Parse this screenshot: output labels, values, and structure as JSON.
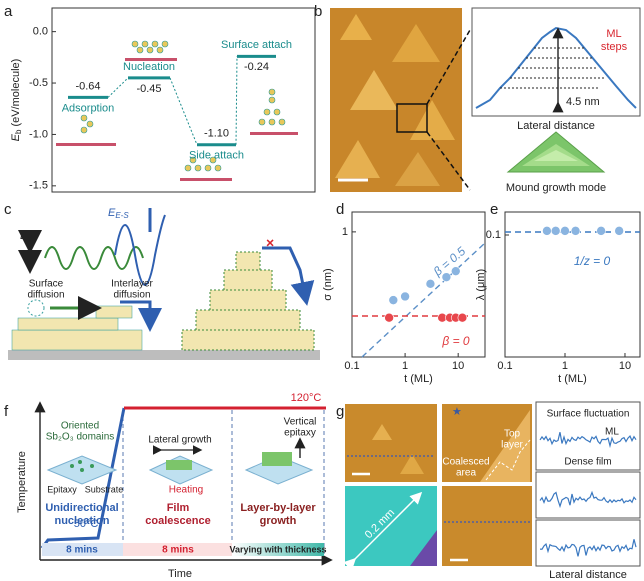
{
  "panel_labels": [
    "a",
    "b",
    "c",
    "d",
    "e",
    "f",
    "g"
  ],
  "chart_data": [
    {
      "type": "level",
      "ylabel": {
        "symbol": "E",
        "subscript": "b",
        "unit": "(eV/molecule)"
      },
      "categories": [
        "Adsorption",
        "Nucleation",
        "Side attach",
        "Surface attach"
      ],
      "values": [
        -0.64,
        -0.45,
        -1.1,
        -0.24
      ],
      "value_labels": [
        "-0.64",
        "-0.45",
        "-1.10",
        "-0.24"
      ],
      "color": "#1a8c8c",
      "ylim": [
        -1.56,
        0.23
      ],
      "yticks": [
        -1.5,
        {
          "value": -1,
          "label": "-1.0"
        },
        -0.5,
        {
          "value": 0,
          "label": "0.0"
        }
      ]
    },
    {
      "type": "scatter",
      "xlabel": "t (ML)",
      "ylabel": "σ (nm)",
      "xscale": "log",
      "yscale": "log",
      "xlim": [
        0.1,
        32
      ],
      "ylim": [
        0.11,
        1.42
      ],
      "xticks": [
        0.1,
        1,
        10
      ],
      "yticks": [
        1
      ],
      "series": [
        {
          "color": "#8ab4e0",
          "x": [
            0.5,
            0.6,
            1,
            3,
            6,
            9
          ],
          "values": [
            0.22,
            0.3,
            0.32,
            0.4,
            0.45,
            0.5
          ]
        },
        {
          "color": "#e8474c",
          "x": [
            0.5,
            5,
            7,
            9,
            12
          ],
          "values": [
            0.22,
            0.22,
            0.22,
            0.22,
            0.22
          ]
        }
      ],
      "annotations": [
        {
          "text": "β = 0.5",
          "color": "#5b8fc7"
        },
        {
          "text": "β = 0",
          "color": "#e03a3e"
        }
      ]
    },
    {
      "type": "scatter",
      "xlabel": "t (ML)",
      "ylabel": "λ (μm)",
      "xscale": "log",
      "yscale": "log",
      "xlim": [
        0.1,
        17.8
      ],
      "ylim": [
        0.006,
        0.17
      ],
      "xticks": [
        0.1,
        1,
        10
      ],
      "yticks": [
        0.1
      ],
      "series": [
        {
          "color": "#8ab4e0",
          "x": [
            0.5,
            0.7,
            1,
            1.5,
            4,
            8
          ],
          "values": [
            0.11,
            0.11,
            0.11,
            0.11,
            0.11,
            0.11
          ]
        }
      ],
      "annotations": [
        {
          "text": "1/z = 0",
          "color": "#3a78c0"
        }
      ]
    }
  ],
  "b": {
    "ml_steps": [
      "ML",
      "steps"
    ],
    "height": "4.5 nm",
    "profile_xlabel": "Lateral distance",
    "mound": "Mound growth mode"
  },
  "c": {
    "ed": {
      "symbol": "E",
      "subscript": "d"
    },
    "ees": {
      "symbol": "E",
      "subscript": "E-S"
    },
    "surface_diffusion": [
      "Surface",
      "diffusion"
    ],
    "interlayer_diffusion": [
      "Interlayer",
      "diffusion"
    ]
  },
  "f": {
    "ylabel": "Temperature",
    "xlabel": "Time",
    "high_temp": "120°C",
    "low_temp": "50°C",
    "domains": [
      "Oriented",
      "Sb₂O₃ domains"
    ],
    "epitaxy": "Epitaxy",
    "substrate": "Substrate",
    "lateral": "Lateral growth",
    "heating": "Heating",
    "vertical": [
      "Vertical",
      "epitaxy"
    ],
    "stages": [
      [
        "Unidirectional",
        "nucleation"
      ],
      [
        "Film",
        "coalescence"
      ],
      [
        "Layer-by-layer",
        "growth"
      ]
    ],
    "durations": [
      "8 mins",
      "8 mins",
      "Varying with thickness"
    ]
  },
  "g": {
    "coalesced": [
      "Coalesced",
      "area"
    ],
    "top_layer": [
      "Top",
      "layer"
    ],
    "scale": "0.2 mm",
    "fluctuation": "Surface fluctuation",
    "ml": "ML",
    "dense": "Dense film",
    "profile_xlabel": "Lateral distance"
  }
}
